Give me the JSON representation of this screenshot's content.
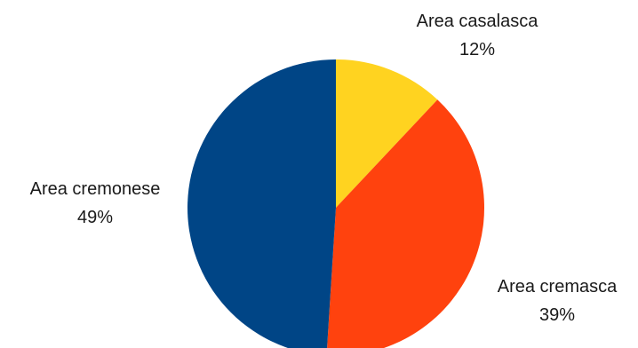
{
  "chart_data": {
    "type": "pie",
    "slices": [
      {
        "label": "Area casalasca",
        "value": 12,
        "value_label": "12%",
        "color": "#FFD320"
      },
      {
        "label": "Area cremasca",
        "value": 39,
        "value_label": "39%",
        "color": "#FF420E"
      },
      {
        "label": "Area cremonese",
        "value": 49,
        "value_label": "49%",
        "color": "#004586"
      }
    ],
    "start": "12 o'clock",
    "direction": "clockwise"
  }
}
